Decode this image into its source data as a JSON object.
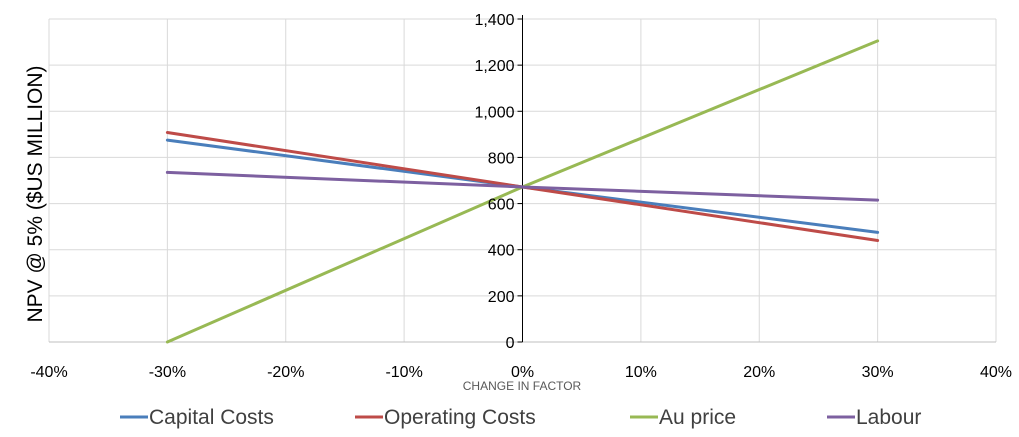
{
  "chart_data": {
    "type": "line",
    "title": "",
    "xlabel": "CHANGE IN FACTOR",
    "ylabel": "NPV @ 5% ($US MILLION)",
    "xlim": [
      -40,
      40
    ],
    "ylim": [
      0,
      1400
    ],
    "x_tick_values": [
      -40,
      -30,
      -20,
      -10,
      0,
      10,
      20,
      30,
      40
    ],
    "x_tick_labels": [
      "-40%",
      "-30%",
      "-20%",
      "-10%",
      "0%",
      "10%",
      "20%",
      "30%",
      "40%"
    ],
    "y_tick_values": [
      0,
      200,
      400,
      600,
      800,
      1000,
      1200,
      1400
    ],
    "y_tick_labels": [
      "0",
      "200",
      "400",
      "600",
      "800",
      "1,000",
      "1,200",
      "1,400"
    ],
    "grid": true,
    "legend_position": "bottom",
    "x": [
      -30,
      0,
      30
    ],
    "series": [
      {
        "name": "Capital Costs",
        "color": "#4a7ebb",
        "values": [
          875,
          672,
          475
        ]
      },
      {
        "name": "Operating Costs",
        "color": "#be4b48",
        "values": [
          908,
          672,
          440
        ]
      },
      {
        "name": "Au price",
        "color": "#98b954",
        "values": [
          0,
          672,
          1305
        ]
      },
      {
        "name": "Labour",
        "color": "#7d60a0",
        "values": [
          735,
          672,
          615
        ]
      }
    ]
  }
}
